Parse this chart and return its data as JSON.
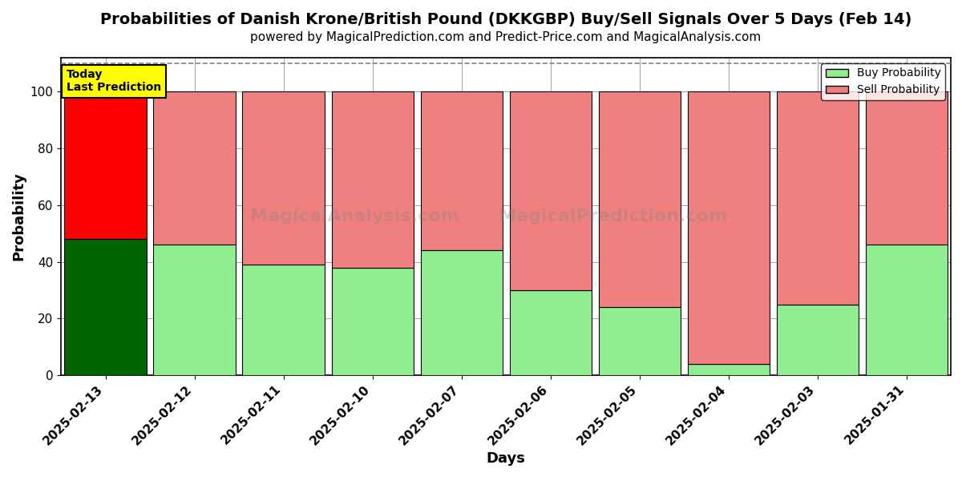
{
  "title": "Probabilities of Danish Krone/British Pound (DKKGBP) Buy/Sell Signals Over 5 Days (Feb 14)",
  "subtitle": "powered by MagicalPrediction.com and Predict-Price.com and MagicalAnalysis.com",
  "xlabel": "Days",
  "ylabel": "Probability",
  "categories": [
    "2025-02-13",
    "2025-02-12",
    "2025-02-11",
    "2025-02-10",
    "2025-02-07",
    "2025-02-06",
    "2025-02-05",
    "2025-02-04",
    "2025-02-03",
    "2025-01-31"
  ],
  "buy_values": [
    48,
    46,
    39,
    38,
    44,
    30,
    24,
    4,
    25,
    46
  ],
  "sell_values": [
    52,
    54,
    61,
    62,
    56,
    70,
    76,
    96,
    75,
    54
  ],
  "buy_color_today": "#006400",
  "sell_color_today": "#FF0000",
  "buy_color_normal": "#90EE90",
  "sell_color_normal": "#F08080",
  "bar_edge_color": "#000000",
  "today_annotation_bg": "#FFFF00",
  "today_annotation_text": "Today\nLast Prediction",
  "ylim": [
    0,
    112
  ],
  "yticks": [
    0,
    20,
    40,
    60,
    80,
    100
  ],
  "dashed_line_y": 110,
  "legend_buy_label": "Buy Probability",
  "legend_sell_label": "Sell Probability",
  "title_fontsize": 14,
  "subtitle_fontsize": 11,
  "axis_label_fontsize": 13,
  "tick_fontsize": 11,
  "bar_width": 0.92,
  "background_color": "#ffffff",
  "watermark1": "MagicalAnalysis.com",
  "watermark2": "MagicalPrediction.com"
}
